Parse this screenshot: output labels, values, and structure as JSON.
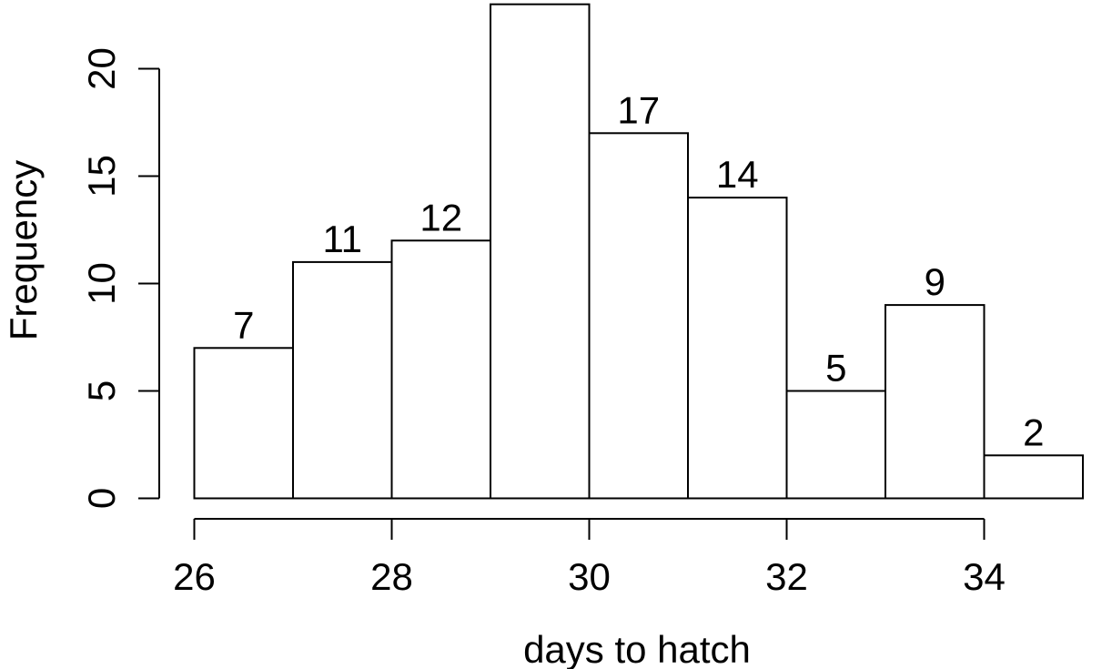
{
  "chart_data": {
    "type": "bar",
    "subtype": "histogram",
    "bins": [
      {
        "start": 26,
        "end": 27,
        "count": 7
      },
      {
        "start": 27,
        "end": 28,
        "count": 11
      },
      {
        "start": 28,
        "end": 29,
        "count": 12
      },
      {
        "start": 29,
        "end": 30,
        "count": 23
      },
      {
        "start": 30,
        "end": 31,
        "count": 17
      },
      {
        "start": 31,
        "end": 32,
        "count": 14
      },
      {
        "start": 32,
        "end": 33,
        "count": 5
      },
      {
        "start": 33,
        "end": 34,
        "count": 9
      },
      {
        "start": 34,
        "end": 35,
        "count": 2
      }
    ],
    "title": "",
    "xlabel": "days to hatch",
    "ylabel": "Frequency",
    "xticks": [
      26,
      28,
      30,
      32,
      34
    ],
    "yticks": [
      0,
      5,
      10,
      15,
      20
    ],
    "xlim": [
      26,
      35
    ],
    "ylim": [
      0,
      23
    ],
    "grid": false,
    "legend": "none",
    "show_data_labels": true,
    "colors": {
      "bar_fill": "#ffffff",
      "bar_stroke": "#000000",
      "text": "#000000"
    }
  }
}
